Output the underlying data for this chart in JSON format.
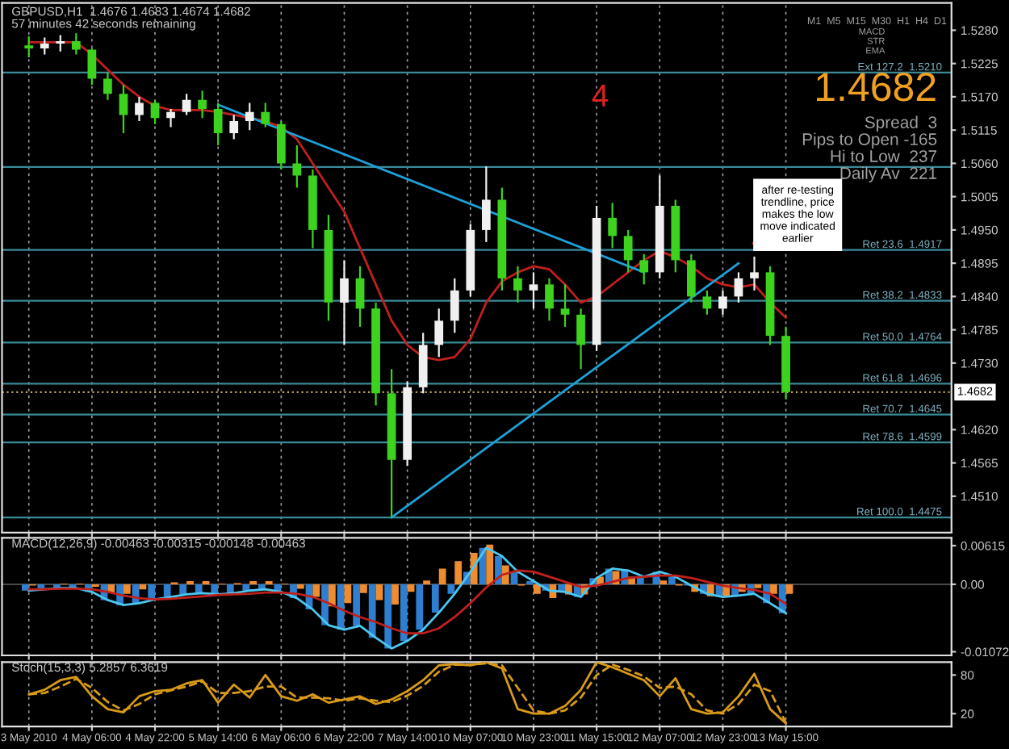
{
  "chart_data": [
    {
      "type": "candlestick",
      "title": "GBPUSD,H1  1.4676 1.4683 1.4674 1.4682",
      "subtitle": "57 minutes 42 seconds remaining",
      "categories": [
        null,
        null,
        null,
        null,
        null,
        null,
        null,
        null,
        null,
        null,
        null,
        null,
        null,
        null,
        null,
        null,
        null,
        null,
        null,
        null,
        null,
        null,
        null,
        null,
        null,
        null,
        null,
        null,
        null,
        null,
        null,
        null,
        null,
        null,
        null,
        null,
        null,
        null,
        null,
        null,
        null,
        null,
        null,
        null,
        null,
        null,
        null,
        null,
        null
      ],
      "ohlc": [
        [
          1.5255,
          1.527,
          1.5235,
          1.525
        ],
        [
          1.525,
          1.5268,
          1.524,
          1.5258
        ],
        [
          1.5258,
          1.5272,
          1.5245,
          1.5262
        ],
        [
          1.5262,
          1.5275,
          1.524,
          1.5248
        ],
        [
          1.5248,
          1.525,
          1.519,
          1.52
        ],
        [
          1.52,
          1.521,
          1.5165,
          1.5175
        ],
        [
          1.5175,
          1.519,
          1.511,
          1.514
        ],
        [
          1.514,
          1.517,
          1.513,
          1.516
        ],
        [
          1.516,
          1.5165,
          1.5125,
          1.5135
        ],
        [
          1.5135,
          1.515,
          1.512,
          1.5145
        ],
        [
          1.5145,
          1.5175,
          1.514,
          1.5165
        ],
        [
          1.5165,
          1.518,
          1.5135,
          1.515
        ],
        [
          1.515,
          1.516,
          1.509,
          1.511
        ],
        [
          1.511,
          1.514,
          1.51,
          1.513
        ],
        [
          1.513,
          1.516,
          1.5115,
          1.5145
        ],
        [
          1.5145,
          1.516,
          1.512,
          1.5125
        ],
        [
          1.5125,
          1.513,
          1.505,
          1.506
        ],
        [
          1.506,
          1.509,
          1.502,
          1.504
        ],
        [
          1.504,
          1.505,
          1.492,
          1.495
        ],
        [
          1.495,
          1.4975,
          1.48,
          1.483
        ],
        [
          1.483,
          1.49,
          1.476,
          1.487
        ],
        [
          1.487,
          1.489,
          1.479,
          1.482
        ],
        [
          1.482,
          1.483,
          1.466,
          1.468
        ],
        [
          1.468,
          1.472,
          1.4475,
          1.457
        ],
        [
          1.457,
          1.47,
          1.456,
          1.469
        ],
        [
          1.469,
          1.478,
          1.468,
          1.476
        ],
        [
          1.476,
          1.482,
          1.474,
          1.48
        ],
        [
          1.48,
          1.487,
          1.478,
          1.485
        ],
        [
          1.485,
          1.496,
          1.484,
          1.495
        ],
        [
          1.495,
          1.5055,
          1.493,
          1.5
        ],
        [
          1.5,
          1.502,
          1.485,
          1.487
        ],
        [
          1.487,
          1.489,
          1.483,
          1.485
        ],
        [
          1.485,
          1.488,
          1.482,
          1.486
        ],
        [
          1.486,
          1.487,
          1.48,
          1.482
        ],
        [
          1.482,
          1.486,
          1.479,
          1.481
        ],
        [
          1.481,
          1.482,
          1.472,
          1.476
        ],
        [
          1.476,
          1.499,
          1.475,
          1.497
        ],
        [
          1.497,
          1.4995,
          1.492,
          1.494
        ],
        [
          1.494,
          1.495,
          1.488,
          1.49
        ],
        [
          1.49,
          1.491,
          1.486,
          1.488
        ],
        [
          1.488,
          1.504,
          1.487,
          1.499
        ],
        [
          1.499,
          1.5,
          1.488,
          1.49
        ],
        [
          1.49,
          1.491,
          1.483,
          1.484
        ],
        [
          1.484,
          1.485,
          1.481,
          1.482
        ],
        [
          1.482,
          1.485,
          1.481,
          1.484
        ],
        [
          1.484,
          1.488,
          1.483,
          1.487
        ],
        [
          1.487,
          1.4906,
          1.485,
          1.488
        ],
        [
          1.488,
          1.489,
          1.476,
          1.4775
        ],
        [
          1.4775,
          1.479,
          1.467,
          1.4682
        ]
      ],
      "series": [
        {
          "type": "line",
          "color": "#c0201c",
          "values": [
            1.526,
            1.526,
            1.526,
            1.526,
            1.524,
            1.5215,
            1.519,
            1.517,
            1.5155,
            1.5148,
            1.5148,
            1.5148,
            1.5145,
            1.514,
            1.5135,
            1.513,
            1.512,
            1.51,
            1.506,
            1.502,
            1.498,
            1.492,
            1.486,
            1.48,
            1.476,
            1.474,
            1.4735,
            1.474,
            1.477,
            1.483,
            1.4865,
            1.488,
            1.489,
            1.4885,
            1.486,
            1.483,
            1.484,
            1.486,
            1.488,
            1.49,
            1.4915,
            1.4905,
            1.489,
            1.487,
            1.486,
            1.4855,
            1.486,
            1.483,
            1.4805
          ]
        },
        {
          "type": "line",
          "color": "#1ea0d8",
          "values": [
            null,
            null,
            null,
            null,
            null,
            null,
            null,
            null,
            null,
            null,
            null,
            null,
            1.5157,
            null,
            null,
            null,
            null,
            null,
            null,
            null,
            null,
            null,
            null,
            null,
            null,
            null,
            null,
            null,
            null,
            null,
            null,
            null,
            null,
            null,
            null,
            null,
            null,
            null,
            null,
            1.488,
            null,
            null,
            null,
            null,
            null,
            null,
            null,
            null,
            null
          ]
        },
        {
          "type": "line",
          "color": "#1ea0d8",
          "values": [
            null,
            null,
            null,
            null,
            null,
            null,
            null,
            null,
            null,
            null,
            null,
            null,
            null,
            null,
            null,
            null,
            null,
            null,
            null,
            null,
            null,
            null,
            null,
            1.4475,
            null,
            null,
            null,
            null,
            null,
            null,
            null,
            null,
            null,
            null,
            null,
            null,
            null,
            null,
            null,
            null,
            null,
            null,
            null,
            null,
            null,
            1.4895,
            null,
            null,
            null
          ]
        }
      ],
      "ylim": [
        1.445,
        1.5325
      ],
      "yticks": [
        {
          "value": 1.528,
          "label": "1.5280"
        },
        {
          "value": 1.5225,
          "label": "1.5225"
        },
        {
          "value": 1.517,
          "label": "1.5170"
        },
        {
          "value": 1.5115,
          "label": "1.5115"
        },
        {
          "value": 1.506,
          "label": "1.5060"
        },
        {
          "value": 1.5005,
          "label": "1.5005"
        },
        {
          "value": 1.495,
          "label": "1.4950"
        },
        {
          "value": 1.4895,
          "label": "1.4895"
        },
        {
          "value": 1.484,
          "label": "1.4840"
        },
        {
          "value": 1.4785,
          "label": "1.4785"
        },
        {
          "value": 1.473,
          "label": "1.4730"
        },
        {
          "value": 1.462,
          "label": "1.4620"
        },
        {
          "value": 1.4565,
          "label": "1.4565"
        },
        {
          "value": 1.451,
          "label": "1.4510"
        }
      ],
      "ref_lines": [
        {
          "axis": "y",
          "value": 1.521,
          "label": "Ext 127.2  1.5210",
          "color": "#3a8a98"
        },
        {
          "axis": "y",
          "value": 1.5054,
          "label": null,
          "color": "#3a8a98"
        },
        {
          "axis": "y",
          "value": 1.4917,
          "label": "Ret 23.6  1.4917",
          "color": "#3a8a98"
        },
        {
          "axis": "y",
          "value": 1.4833,
          "label": "Ret 38.2  1.4833",
          "color": "#3a8a98"
        },
        {
          "axis": "y",
          "value": 1.4764,
          "label": "Ret 50.0  1.4764",
          "color": "#3a8a98"
        },
        {
          "axis": "y",
          "value": 1.4696,
          "label": "Ret 61.8  1.4696",
          "color": "#3a8a98"
        },
        {
          "axis": "y",
          "value": 1.4645,
          "label": "Ret 70.7  1.4645",
          "color": "#3a8a98"
        },
        {
          "axis": "y",
          "value": 1.4599,
          "label": "Ret 78.6  1.4599",
          "color": "#3a8a98"
        },
        {
          "axis": "y",
          "value": 1.4475,
          "label": "Ret 100.0  1.4475",
          "color": "#3a8a98"
        },
        {
          "axis": "y",
          "value": 1.4682,
          "label": "1.4682",
          "color": "#b8a060",
          "line_style": "dotted"
        }
      ],
      "annotations": [
        "4",
        "1.4682",
        "Spread  3",
        "Pips to Open -165",
        "Hi to Low  237",
        "Daily Av  221",
        "M1  M5  M15  M30  H1  H4  D1",
        "MACD",
        "STR",
        "EMA",
        "after re-testing\ntrendline, price\nmakes the low\nmove indicated\nearlier"
      ],
      "grid": "x",
      "tick_labels": "y"
    },
    {
      "type": "bar",
      "title": "MACD(12,26,9) -0.00463 -0.00315 -0.00148 -0.00463",
      "categories": [
        null,
        null,
        null,
        null,
        null,
        null,
        null,
        null,
        null,
        null,
        null,
        null,
        null,
        null,
        null,
        null,
        null,
        null,
        null,
        null,
        null,
        null,
        null,
        null,
        null,
        null,
        null,
        null,
        null,
        null,
        null,
        null,
        null,
        null,
        null,
        null,
        null,
        null,
        null,
        null,
        null,
        null,
        null,
        null,
        null,
        null,
        null,
        null,
        null
      ],
      "series": [
        {
          "type": "bar",
          "color": "#2f7fd0",
          "values": [
            -0.001,
            -0.0008,
            -0.0006,
            -0.0006,
            -0.0012,
            -0.0025,
            -0.0033,
            -0.003,
            -0.0024,
            -0.002,
            -0.0016,
            -0.0014,
            -0.0016,
            -0.0014,
            -0.001,
            -0.0008,
            -0.0012,
            -0.0022,
            -0.004,
            -0.0065,
            -0.0072,
            -0.0066,
            -0.0085,
            -0.0102,
            -0.009,
            -0.0072,
            -0.0045,
            -0.0015,
            0.002,
            0.0058,
            0.0045,
            0.002,
            0.0005,
            -0.001,
            -0.0012,
            -0.002,
            0.001,
            0.0025,
            0.0022,
            0.0012,
            0.002,
            0.0012,
            -0.0002,
            -0.0015,
            -0.002,
            -0.0018,
            -0.0015,
            -0.003,
            -0.0046
          ]
        },
        {
          "type": "bar",
          "color": "#f08c30",
          "values": [
            -0.0002,
            0.0,
            0.0001,
            0.0001,
            -0.0004,
            -0.0013,
            -0.0015,
            -0.0008,
            0.0,
            0.0003,
            0.0005,
            0.0005,
            0.0001,
            0.0002,
            0.0005,
            0.0005,
            0.0001,
            -0.0007,
            -0.002,
            -0.0035,
            -0.003,
            -0.0014,
            -0.0025,
            -0.0032,
            -0.0012,
            0.0006,
            0.0025,
            0.0037,
            0.005,
            0.0063,
            0.003,
            -0.0002,
            -0.0015,
            -0.0022,
            -0.0016,
            -0.0016,
            0.0012,
            0.0021,
            0.0012,
            0.0,
            0.0006,
            -0.0002,
            -0.0012,
            -0.0019,
            -0.0018,
            -0.0012,
            -0.0006,
            -0.0015,
            -0.0015
          ]
        },
        {
          "type": "line",
          "color": "#4cc8f0",
          "values": [
            -0.001,
            -0.0008,
            -0.0006,
            -0.0006,
            -0.0012,
            -0.0025,
            -0.0033,
            -0.003,
            -0.0024,
            -0.002,
            -0.0016,
            -0.0014,
            -0.0016,
            -0.0014,
            -0.001,
            -0.0008,
            -0.0012,
            -0.0022,
            -0.004,
            -0.0065,
            -0.0072,
            -0.0066,
            -0.0085,
            -0.0102,
            -0.009,
            -0.0072,
            -0.0045,
            -0.0015,
            0.002,
            0.0058,
            0.0045,
            0.002,
            0.0005,
            -0.001,
            -0.0012,
            -0.002,
            0.001,
            0.0025,
            0.0022,
            0.0012,
            0.002,
            0.0012,
            -0.0002,
            -0.0015,
            -0.002,
            -0.0018,
            -0.0015,
            -0.003,
            -0.0046
          ]
        },
        {
          "type": "line",
          "color": "#c0201c",
          "values": [
            -0.0008,
            -0.0008,
            -0.0007,
            -0.0007,
            -0.0008,
            -0.0012,
            -0.0018,
            -0.0022,
            -0.0024,
            -0.0023,
            -0.0021,
            -0.0019,
            -0.0017,
            -0.0016,
            -0.0015,
            -0.0013,
            -0.0013,
            -0.0015,
            -0.002,
            -0.003,
            -0.0042,
            -0.0052,
            -0.006,
            -0.007,
            -0.0078,
            -0.0078,
            -0.007,
            -0.0052,
            -0.003,
            -0.0005,
            0.0015,
            0.0022,
            0.002,
            0.0012,
            0.0004,
            -0.0004,
            -0.0002,
            0.0004,
            0.001,
            0.0012,
            0.0014,
            0.0014,
            0.001,
            0.0004,
            -0.0002,
            -0.0006,
            -0.0009,
            -0.0015,
            -0.0031
          ]
        }
      ],
      "ylim": [
        -0.0113,
        0.0074
      ],
      "yticks": [
        {
          "value": 0.00615,
          "label": "0.00615"
        },
        {
          "value": 0,
          "label": "0.00"
        },
        {
          "value": -0.01072,
          "label": "-0.01072"
        }
      ],
      "grid": "x",
      "tick_labels": "y"
    },
    {
      "type": "line",
      "title": "Stoch(15,3,3) 5.2857 6.3619",
      "categories": [
        "3 May 2010",
        null,
        null,
        null,
        "4 May 06:00",
        null,
        null,
        null,
        "4 May 22:00",
        null,
        null,
        null,
        "5 May 14:00",
        null,
        null,
        null,
        "6 May 06:00",
        null,
        null,
        null,
        "6 May 22:00",
        null,
        null,
        null,
        "7 May 14:00",
        null,
        null,
        null,
        "10 May 07:00",
        null,
        null,
        null,
        "10 May 23:00",
        null,
        null,
        null,
        "11 May 15:00",
        null,
        null,
        null,
        "12 May 07:00",
        null,
        null,
        null,
        "12 May 23:00",
        null,
        null,
        null,
        "13 May 15:00"
      ],
      "series": [
        {
          "color": "#d89a18",
          "line_style": "solid",
          "values": [
            50,
            57,
            72,
            77,
            47,
            27,
            22,
            47,
            55,
            57,
            67,
            72,
            37,
            65,
            45,
            80,
            47,
            40,
            50,
            37,
            42,
            47,
            35,
            42,
            55,
            72,
            95,
            97,
            95,
            100,
            90,
            27,
            20,
            20,
            32,
            57,
            100,
            92,
            82,
            72,
            47,
            75,
            27,
            20,
            22,
            47,
            82,
            27,
            5
          ]
        },
        {
          "color": "#d89a18",
          "line_style": "dashed",
          "values": [
            50,
            52,
            62,
            74,
            60,
            38,
            25,
            35,
            50,
            56,
            62,
            70,
            52,
            52,
            55,
            62,
            62,
            45,
            45,
            44,
            40,
            44,
            40,
            38,
            48,
            63,
            85,
            96,
            96,
            98,
            95,
            60,
            25,
            20,
            25,
            45,
            80,
            96,
            88,
            78,
            60,
            62,
            50,
            25,
            20,
            35,
            65,
            55,
            6
          ]
        }
      ],
      "ylim": [
        0,
        100
      ],
      "yticks": [
        20,
        80
      ],
      "grid": "x"
    }
  ]
}
